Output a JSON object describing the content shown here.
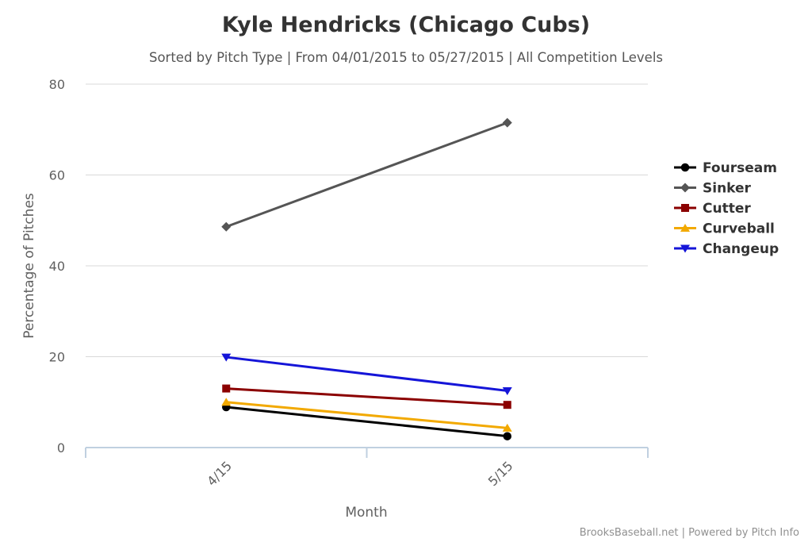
{
  "chart_data": {
    "type": "line",
    "title": "Kyle Hendricks (Chicago Cubs)",
    "subtitle": "Sorted by Pitch Type | From 04/01/2015 to 05/27/2015 | All Competition Levels",
    "xlabel": "Month",
    "ylabel": "Percentage of Pitches",
    "categories": [
      "4/15",
      "5/15"
    ],
    "ylim": [
      0,
      80
    ],
    "yticks": [
      0,
      20,
      40,
      60,
      80
    ],
    "grid": true,
    "legend_position": "right",
    "credits": "BrooksBaseball.net | Powered by Pitch Info",
    "series": [
      {
        "name": "Fourseam",
        "color": "#000000",
        "marker": "circle",
        "values": [
          8.9,
          2.5
        ]
      },
      {
        "name": "Sinker",
        "color": "#555555",
        "marker": "diamond",
        "values": [
          48.6,
          71.5
        ]
      },
      {
        "name": "Cutter",
        "color": "#8b0000",
        "marker": "square",
        "values": [
          13.0,
          9.4
        ]
      },
      {
        "name": "Curveball",
        "color": "#f2a900",
        "marker": "triangle",
        "values": [
          10.0,
          4.3
        ]
      },
      {
        "name": "Changeup",
        "color": "#1515d8",
        "marker": "triangle-down",
        "values": [
          19.9,
          12.5
        ]
      }
    ]
  }
}
